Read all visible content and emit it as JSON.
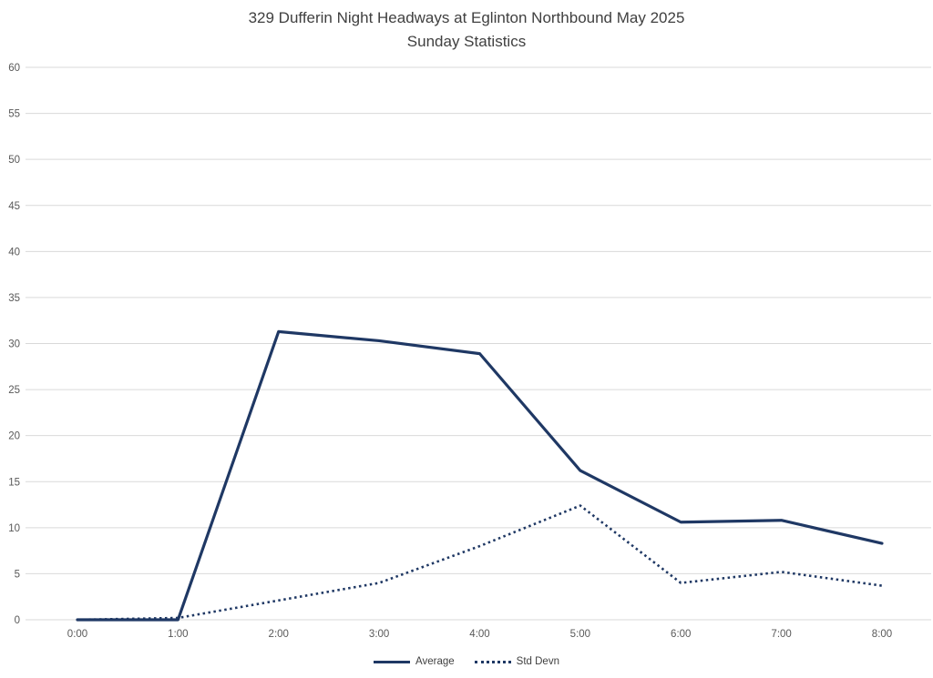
{
  "chart_data": {
    "type": "line",
    "title_line1": "329 Dufferin Night Headways at Eglinton Northbound May 2025",
    "title_line2": "Sunday Statistics",
    "categories": [
      "0:00",
      "1:00",
      "2:00",
      "3:00",
      "4:00",
      "5:00",
      "6:00",
      "7:00",
      "8:00"
    ],
    "series": [
      {
        "name": "Average",
        "style": "solid",
        "values": [
          0,
          0,
          31.3,
          30.3,
          28.9,
          16.2,
          10.6,
          10.8,
          8.3
        ]
      },
      {
        "name": "Std Devn",
        "style": "dotted",
        "values": [
          0,
          0.2,
          2.1,
          4.0,
          8.0,
          12.4,
          4.0,
          5.2,
          3.7
        ]
      }
    ],
    "xlabel": "",
    "ylabel": "",
    "ylim": [
      0,
      60
    ],
    "ytick_step": 5,
    "grid": "horizontal",
    "legend_position": "bottom",
    "colors": {
      "line": "#1f3864",
      "grid": "#d9d9d9",
      "tick_text": "#595959",
      "title_text": "#404040"
    }
  }
}
